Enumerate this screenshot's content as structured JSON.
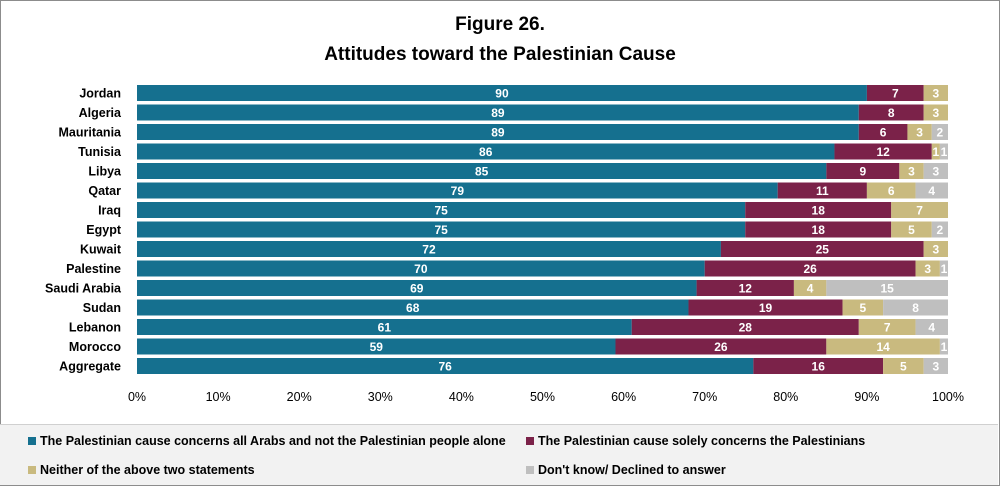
{
  "chart_data": {
    "type": "bar",
    "orientation": "horizontal",
    "stacked": true,
    "figure_label": "Figure 26.",
    "title": "Attitudes toward the Palestinian Cause",
    "categories": [
      "Jordan",
      "Algeria",
      "Mauritania",
      "Tunisia",
      "Libya",
      "Qatar",
      "Iraq",
      "Egypt",
      "Kuwait",
      "Palestine",
      "Saudi Arabia",
      "Sudan",
      "Lebanon",
      "Morocco",
      "Aggregate"
    ],
    "series": [
      {
        "name": "The Palestinian cause concerns all Arabs and not the Palestinian people alone",
        "color": "#15708f",
        "values": [
          90,
          89,
          89,
          86,
          85,
          79,
          75,
          75,
          72,
          70,
          69,
          68,
          61,
          59,
          76
        ]
      },
      {
        "name": "The Palestinian cause solely concerns the Palestinians",
        "color": "#7b2249",
        "values": [
          7,
          8,
          6,
          12,
          9,
          11,
          18,
          18,
          25,
          26,
          12,
          19,
          28,
          26,
          16
        ]
      },
      {
        "name": "Neither of the above two statements",
        "color": "#c9ba7f",
        "values": [
          3,
          3,
          3,
          1,
          3,
          6,
          7,
          5,
          3,
          3,
          4,
          5,
          7,
          14,
          5
        ]
      },
      {
        "name": "Don't know/ Declined to answer",
        "color": "#bfbfbf",
        "values": [
          0,
          0,
          2,
          1,
          3,
          4,
          0,
          2,
          0,
          1,
          15,
          8,
          4,
          1,
          3
        ]
      }
    ],
    "xlim": [
      0,
      100
    ],
    "x_ticks": [
      "0%",
      "10%",
      "20%",
      "30%",
      "40%",
      "50%",
      "60%",
      "70%",
      "80%",
      "90%",
      "100%"
    ],
    "x_tick_values": [
      0,
      10,
      20,
      30,
      40,
      50,
      60,
      70,
      80,
      90,
      100
    ],
    "legend_position": "bottom",
    "grid": false
  }
}
